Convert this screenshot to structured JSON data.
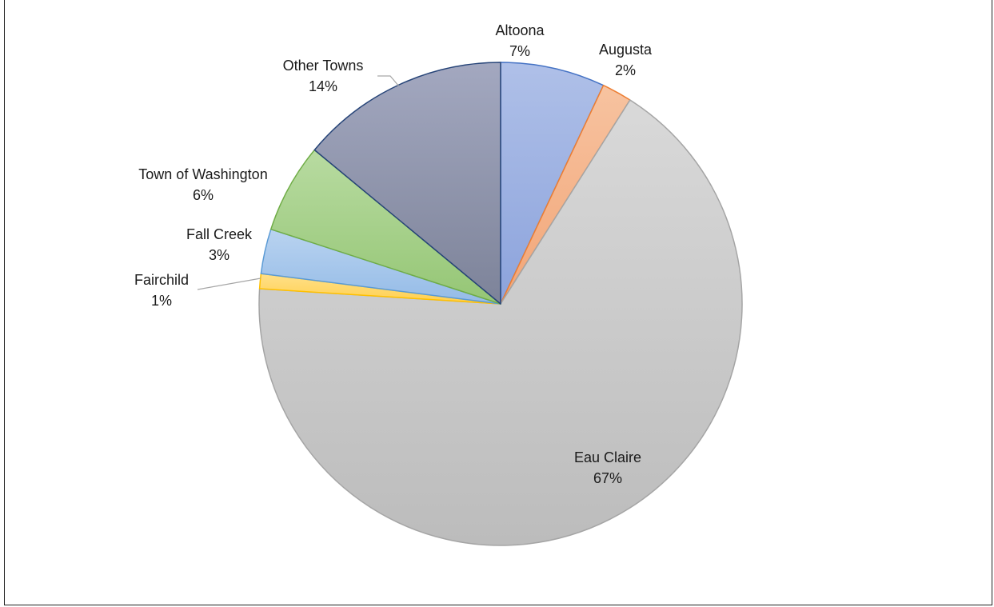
{
  "chart_data": {
    "type": "pie",
    "title": "",
    "start_angle_deg": 0,
    "direction": "clockwise",
    "legend": "none",
    "slices": [
      {
        "name": "Altoona",
        "value": 7,
        "label": "7%",
        "color": "#98ADDF",
        "stroke": "#4472C4"
      },
      {
        "name": "Augusta",
        "value": 2,
        "label": "2%",
        "color": "#F4B183",
        "stroke": "#ED7D31"
      },
      {
        "name": "Eau Claire",
        "value": 67,
        "label": "67%",
        "color": "#C7C7C7",
        "stroke": "#A5A5A5"
      },
      {
        "name": "Fairchild",
        "value": 1,
        "label": "1%",
        "color": "#FFD966",
        "stroke": "#FFC000"
      },
      {
        "name": "Fall Creek",
        "value": 3,
        "label": "3%",
        "color": "#A9C8EC",
        "stroke": "#5B9BD5"
      },
      {
        "name": "Town of Washington",
        "value": 6,
        "label": "6%",
        "color": "#A9D18E",
        "stroke": "#70AD47"
      },
      {
        "name": "Other Towns",
        "value": 14,
        "label": "14%",
        "color": "#8E93AE",
        "stroke": "#264478"
      }
    ]
  }
}
